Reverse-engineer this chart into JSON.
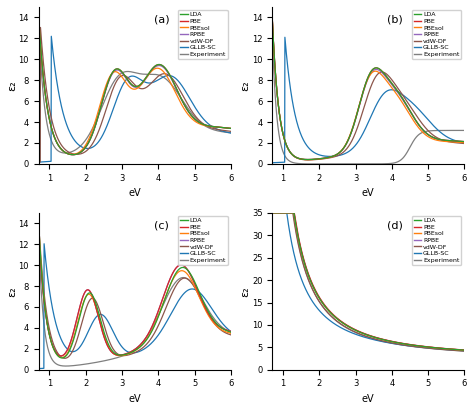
{
  "figsize": [
    4.74,
    4.11
  ],
  "dpi": 100,
  "xlim": [
    0.7,
    6.0
  ],
  "xticks": [
    1,
    2,
    3,
    4,
    5,
    6
  ],
  "xlabel": "eV",
  "ylabel": "ε₂",
  "panels": [
    "(a)",
    "(b)",
    "(c)",
    "(d)"
  ],
  "legend_labels": [
    "LDA",
    "PBE",
    "PBEsol",
    "RPBE",
    "vdW-DF",
    "GLLB-SC",
    "Experiment"
  ],
  "colors": {
    "LDA": "#2ca02c",
    "PBE": "#d62728",
    "PBEsol": "#ff7f0e",
    "RPBE": "#9467bd",
    "vdW-DF": "#8c564b",
    "GLLB-SC": "#1f77b4",
    "Experiment": "#7f7f7f"
  },
  "ylims": {
    "a": [
      0,
      15
    ],
    "b": [
      0,
      15
    ],
    "c": [
      0,
      15
    ],
    "d": [
      0,
      35
    ]
  },
  "yticks": {
    "a": [
      0,
      2,
      4,
      6,
      8,
      10,
      12,
      14
    ],
    "b": [
      0,
      2,
      4,
      6,
      8,
      10,
      12,
      14
    ],
    "c": [
      0,
      2,
      4,
      6,
      8,
      10,
      12,
      14
    ],
    "d": [
      0,
      5,
      10,
      15,
      20,
      25,
      30,
      35
    ]
  }
}
